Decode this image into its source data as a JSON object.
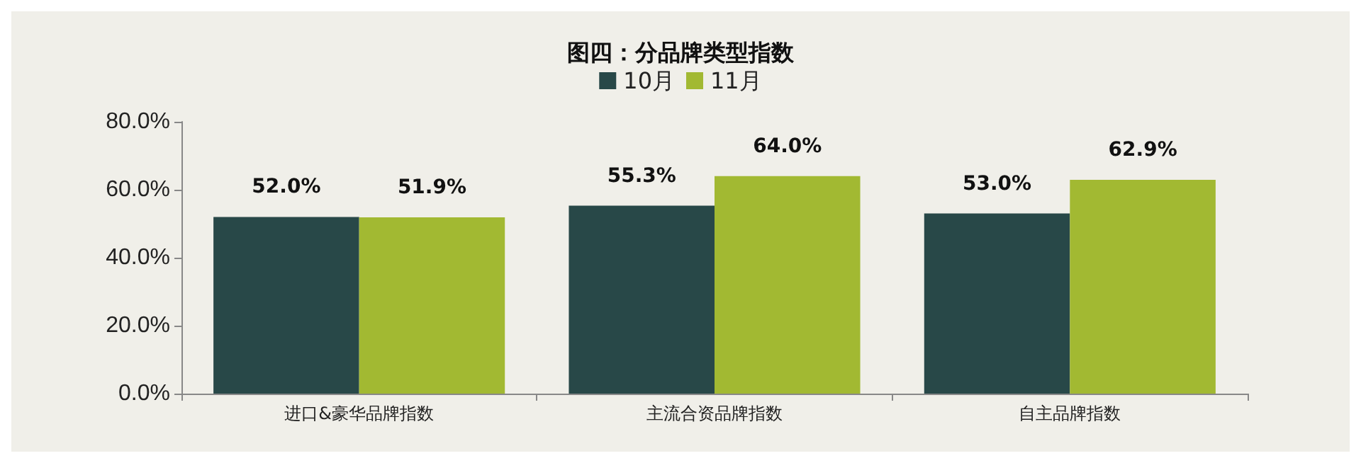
{
  "chart_data": {
    "type": "bar",
    "title": "图四：分品牌类型指数",
    "categories": [
      "进口&豪华品牌指数",
      "主流合资品牌指数",
      "自主品牌指数"
    ],
    "series": [
      {
        "name": "10月",
        "color": "#284848",
        "values": [
          52.0,
          55.3,
          53.0
        ],
        "value_labels": [
          "52.0%",
          "55.3%",
          "53.0%"
        ]
      },
      {
        "name": "11月",
        "color": "#a2b932",
        "values": [
          51.9,
          64.0,
          62.9
        ],
        "value_labels": [
          "51.9%",
          "64.0%",
          "62.9%"
        ]
      }
    ],
    "ylim": [
      0,
      80
    ],
    "yticks": [
      {
        "value": 0,
        "label": "0.0%"
      },
      {
        "value": 20,
        "label": "20.0%"
      },
      {
        "value": 40,
        "label": "40.0%"
      },
      {
        "value": 60,
        "label": "60.0%"
      },
      {
        "value": 80,
        "label": "80.0%"
      }
    ],
    "grid": false,
    "legend": "top"
  }
}
